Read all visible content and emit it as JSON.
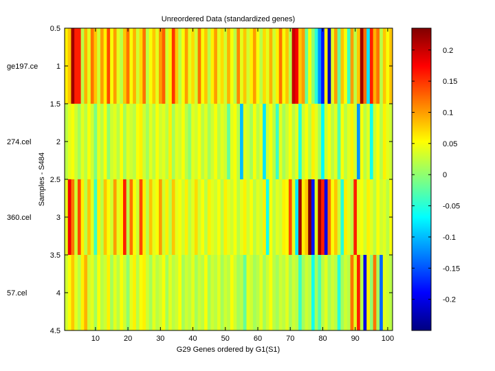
{
  "chart_data": {
    "type": "heatmap",
    "title": "Unreordered Data (standardized genes)",
    "xlabel": "G29 Genes ordered by G1(S1)",
    "ylabel": "Samples - S484",
    "xlim": [
      0.5,
      101.5
    ],
    "ylim": [
      0.5,
      4.5
    ],
    "x_ticks": [
      10,
      20,
      30,
      40,
      50,
      60,
      70,
      80,
      90,
      100
    ],
    "y_ticks": [
      "0.5",
      "1",
      "1.5",
      "2",
      "2.5",
      "3",
      "3.5",
      "4",
      "4.5"
    ],
    "row_labels": [
      "ge197.ce",
      "274.cel",
      "360.cel",
      "57.cel"
    ],
    "colorbar": {
      "colormap": "jet",
      "range": [
        -0.25,
        0.235
      ],
      "ticks": [
        0.2,
        0.15,
        0.1,
        0.05,
        0,
        -0.05,
        -0.1,
        -0.15,
        -0.2
      ],
      "tick_labels": [
        "0.2",
        "0.15",
        "0.1",
        "0.05",
        "0",
        "-0.05",
        "-0.1",
        "-0.15",
        "-0.2"
      ]
    },
    "rows": [
      [
        0.06,
        0.08,
        0.22,
        0.16,
        0.16,
        0.02,
        0.09,
        0.04,
        0.12,
        0.08,
        0.03,
        0.1,
        0.06,
        0.14,
        0.05,
        0.1,
        0.04,
        0.02,
        0.08,
        0.12,
        0.05,
        0.09,
        0.03,
        0.07,
        0.12,
        0.02,
        0.05,
        0.08,
        0.04,
        0.1,
        0.13,
        0.03,
        0.06,
        0.15,
        0.08,
        0.02,
        0.05,
        0.1,
        0.04,
        0.07,
        0.03,
        0.12,
        0.05,
        0.08,
        0.02,
        0.06,
        0.1,
        0.04,
        0.07,
        0.03,
        0.09,
        0.05,
        0.02,
        0.11,
        0.04,
        0.08,
        0.03,
        0.06,
        0.1,
        0.05,
        0.02,
        0.07,
        0.04,
        0.09,
        0.03,
        0.06,
        0.12,
        0.05,
        0.08,
        0.02,
        0.2,
        0.18,
        0.08,
        0.1,
        -0.02,
        0.05,
        0.0,
        -0.05,
        -0.12,
        -0.18,
        0.06,
        -0.22,
        0.04,
        0.1,
        -0.02,
        0.08,
        0.05,
        -0.04,
        0.1,
        0.02,
        0.08,
        0.22,
        0.12,
        -0.08,
        0.16,
        0.09,
        0.12,
        0.02,
        0.08,
        0.05,
        0.08
      ],
      [
        0.02,
        0.04,
        0.05,
        0.03,
        0.01,
        0.04,
        0.02,
        0.05,
        0.03,
        -0.01,
        0.04,
        0.02,
        0.05,
        0.0,
        0.03,
        0.04,
        0.02,
        0.05,
        0.01,
        0.04,
        0.03,
        0.02,
        0.05,
        0.06,
        0.03,
        0.01,
        0.04,
        0.02,
        0.05,
        0.03,
        0.04,
        0.02,
        0.06,
        0.01,
        0.04,
        0.03,
        0.05,
        0.02,
        0.0,
        0.04,
        0.03,
        0.05,
        0.02,
        0.04,
        0.01,
        0.03,
        0.05,
        0.02,
        0.04,
        0.03,
        -0.02,
        0.04,
        0.05,
        0.02,
        -0.1,
        0.04,
        0.03,
        0.01,
        0.05,
        0.02,
        0.04,
        -0.08,
        0.03,
        0.05,
        0.02,
        -0.04,
        0.04,
        0.01,
        0.03,
        0.05,
        0.02,
        0.04,
        -0.05,
        0.03,
        0.05,
        0.02,
        0.06,
        0.04,
        0.01,
        -0.07,
        0.03,
        0.05,
        0.02,
        0.04,
        -0.03,
        0.05,
        0.02,
        0.04,
        0.06,
        0.03,
        -0.12,
        0.05,
        0.02,
        0.04,
        -0.06,
        0.03,
        0.05,
        0.02,
        0.06,
        0.04,
        0.03
      ],
      [
        0.04,
        0.18,
        0.12,
        0.03,
        0.14,
        0.06,
        0.02,
        0.08,
        0.04,
        -0.04,
        0.06,
        0.02,
        0.08,
        0.05,
        0.03,
        0.1,
        0.04,
        0.06,
        0.16,
        0.02,
        0.12,
        0.05,
        0.03,
        0.14,
        0.06,
        0.02,
        0.08,
        0.04,
        0.05,
        0.1,
        0.03,
        0.06,
        0.02,
        0.08,
        0.04,
        0.05,
        0.03,
        0.06,
        0.02,
        0.04,
        0.07,
        0.03,
        0.05,
        0.02,
        0.06,
        0.04,
        0.03,
        0.05,
        0.02,
        0.06,
        0.04,
        0.03,
        0.05,
        0.02,
        0.04,
        0.06,
        0.03,
        0.05,
        0.02,
        0.04,
        0.03,
        0.06,
        -0.06,
        0.05,
        0.02,
        0.04,
        0.03,
        0.06,
        0.05,
        0.14,
        0.04,
        -0.08,
        0.22,
        0.06,
        0.08,
        0.24,
        -0.18,
        0.04,
        0.22,
        0.16,
        -0.2,
        0.12,
        0.05,
        0.08,
        0.03,
        -0.05,
        0.06,
        0.04,
        0.02,
        0.16,
        0.04,
        0.05,
        0.03,
        0.06,
        0.04,
        0.02,
        0.05,
        0.03,
        0.04,
        0.02,
        0.05
      ],
      [
        0.03,
        0.05,
        0.08,
        0.04,
        0.02,
        0.06,
        0.09,
        0.03,
        0.04,
        0.01,
        0.05,
        0.02,
        0.03,
        0.06,
        0.01,
        0.04,
        0.02,
        0.05,
        0.03,
        0.0,
        0.04,
        0.06,
        0.02,
        0.05,
        0.06,
        0.03,
        0.01,
        0.04,
        0.02,
        0.03,
        0.05,
        0.01,
        0.04,
        0.02,
        0.03,
        0.05,
        0.01,
        0.03,
        0.02,
        0.04,
        0.01,
        0.03,
        0.02,
        0.05,
        0.01,
        0.03,
        0.02,
        0.04,
        0.01,
        0.03,
        0.02,
        0.05,
        0.03,
        0.01,
        0.02,
        -0.02,
        0.04,
        0.03,
        0.01,
        0.02,
        0.04,
        0.01,
        0.03,
        0.05,
        0.02,
        0.01,
        0.03,
        0.02,
        0.04,
        0.01,
        0.03,
        0.02,
        -0.04,
        0.01,
        0.03,
        0.02,
        -0.06,
        0.01,
        -0.03,
        0.02,
        0.04,
        0.01,
        0.03,
        0.02,
        -0.05,
        0.01,
        0.03,
        0.02,
        0.12,
        0.04,
        0.16,
        0.02,
        -0.2,
        0.06,
        0.0,
        0.12,
        0.01,
        -0.14,
        0.04,
        0.03,
        0.02
      ]
    ]
  }
}
